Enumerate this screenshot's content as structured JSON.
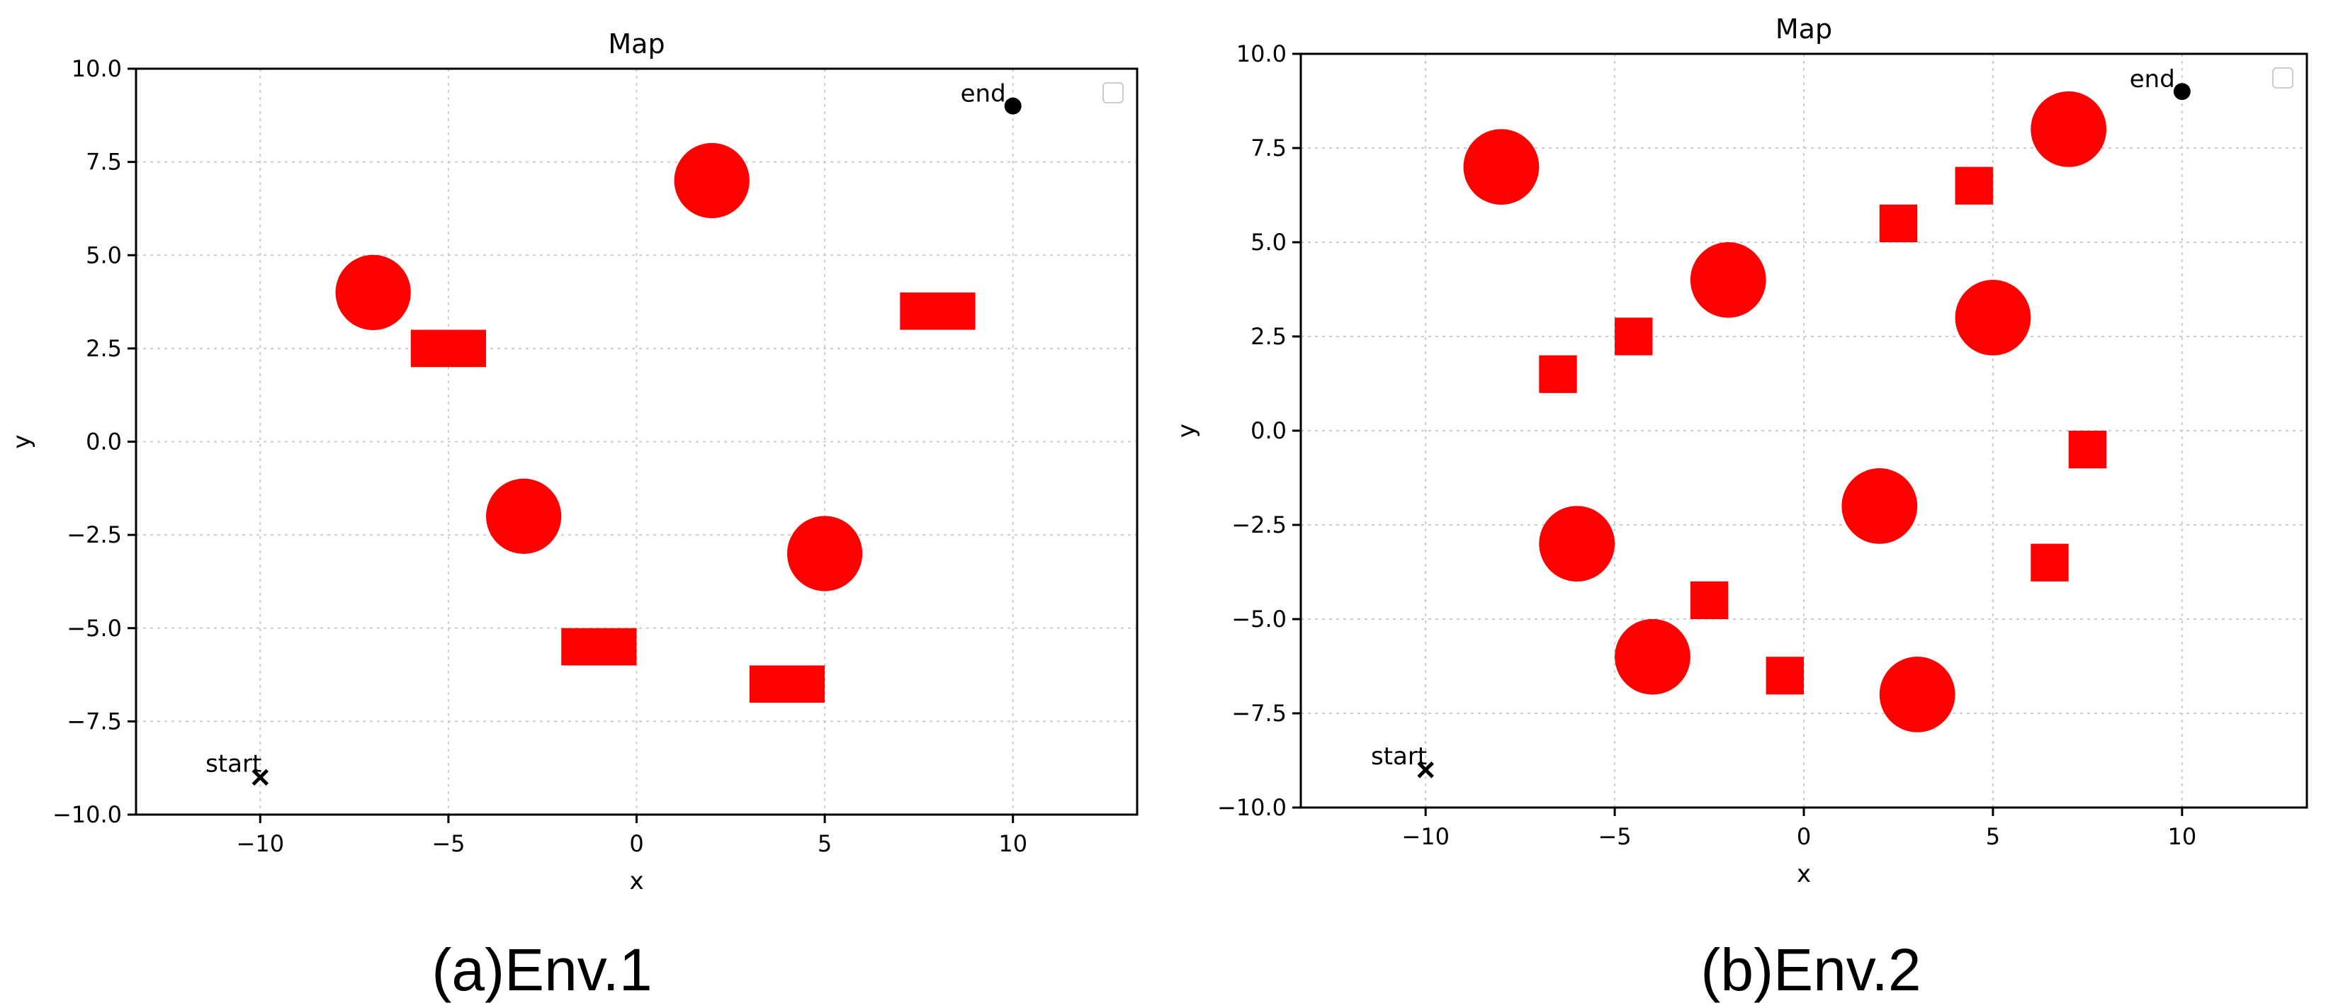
{
  "colors": {
    "obstacle": "#ff0000",
    "axis": "#000000",
    "grid": "#cccccc",
    "marker": "#000000"
  },
  "chart_data": [
    {
      "type": "scatter",
      "title": "Map",
      "xlabel": "x",
      "ylabel": "y",
      "xlim": [
        -13.3,
        13.3
      ],
      "ylim": [
        -10,
        10
      ],
      "xticks": [
        -10,
        -5,
        0,
        5,
        10
      ],
      "yticks": [
        -10.0,
        -7.5,
        -5.0,
        -2.5,
        0.0,
        2.5,
        5.0,
        7.5,
        10.0
      ],
      "grid": true,
      "legend": "top-right (empty)",
      "caption": "(a)Env.1",
      "start": {
        "label": "start",
        "x": -10,
        "y": -9
      },
      "end": {
        "label": "end",
        "x": 10,
        "y": 9
      },
      "circles": [
        {
          "x": -7,
          "y": 4,
          "r": 1
        },
        {
          "x": 2,
          "y": 7,
          "r": 1
        },
        {
          "x": -3,
          "y": -2,
          "r": 1
        },
        {
          "x": 5,
          "y": -3,
          "r": 1
        }
      ],
      "rectangles": [
        {
          "x": -5,
          "y": 2.5,
          "w": 2,
          "h": 1
        },
        {
          "x": 8,
          "y": 3.5,
          "w": 2,
          "h": 1
        },
        {
          "x": -1,
          "y": -5.5,
          "w": 2,
          "h": 1
        },
        {
          "x": 4,
          "y": -6.5,
          "w": 2,
          "h": 1
        }
      ]
    },
    {
      "type": "scatter",
      "title": "Map",
      "xlabel": "x",
      "ylabel": "y",
      "xlim": [
        -13.3,
        13.3
      ],
      "ylim": [
        -10,
        10
      ],
      "xticks": [
        -10,
        -5,
        0,
        5,
        10
      ],
      "yticks": [
        -10.0,
        -7.5,
        -5.0,
        -2.5,
        0.0,
        2.5,
        5.0,
        7.5,
        10.0
      ],
      "grid": true,
      "legend": "top-right (empty)",
      "caption": "(b)Env.2",
      "start": {
        "label": "start",
        "x": -10,
        "y": -9
      },
      "end": {
        "label": "end",
        "x": 10,
        "y": 9
      },
      "circles": [
        {
          "x": -8,
          "y": 7,
          "r": 1
        },
        {
          "x": 7,
          "y": 8,
          "r": 1
        },
        {
          "x": -2,
          "y": 4,
          "r": 1
        },
        {
          "x": 5,
          "y": 3,
          "r": 1
        },
        {
          "x": 2,
          "y": -2,
          "r": 1
        },
        {
          "x": -6,
          "y": -3,
          "r": 1
        },
        {
          "x": -4,
          "y": -6,
          "r": 1
        },
        {
          "x": 3,
          "y": -7,
          "r": 1
        }
      ],
      "rectangles": [
        {
          "x": 4.5,
          "y": 6.5,
          "w": 1,
          "h": 1
        },
        {
          "x": 2.5,
          "y": 5.5,
          "w": 1,
          "h": 1
        },
        {
          "x": -4.5,
          "y": 2.5,
          "w": 1,
          "h": 1
        },
        {
          "x": -6.5,
          "y": 1.5,
          "w": 1,
          "h": 1
        },
        {
          "x": 7.5,
          "y": -0.5,
          "w": 1,
          "h": 1
        },
        {
          "x": 6.5,
          "y": -3.5,
          "w": 1,
          "h": 1
        },
        {
          "x": -2.5,
          "y": -4.5,
          "w": 1,
          "h": 1
        },
        {
          "x": -0.5,
          "y": -6.5,
          "w": 1,
          "h": 1
        }
      ]
    }
  ]
}
